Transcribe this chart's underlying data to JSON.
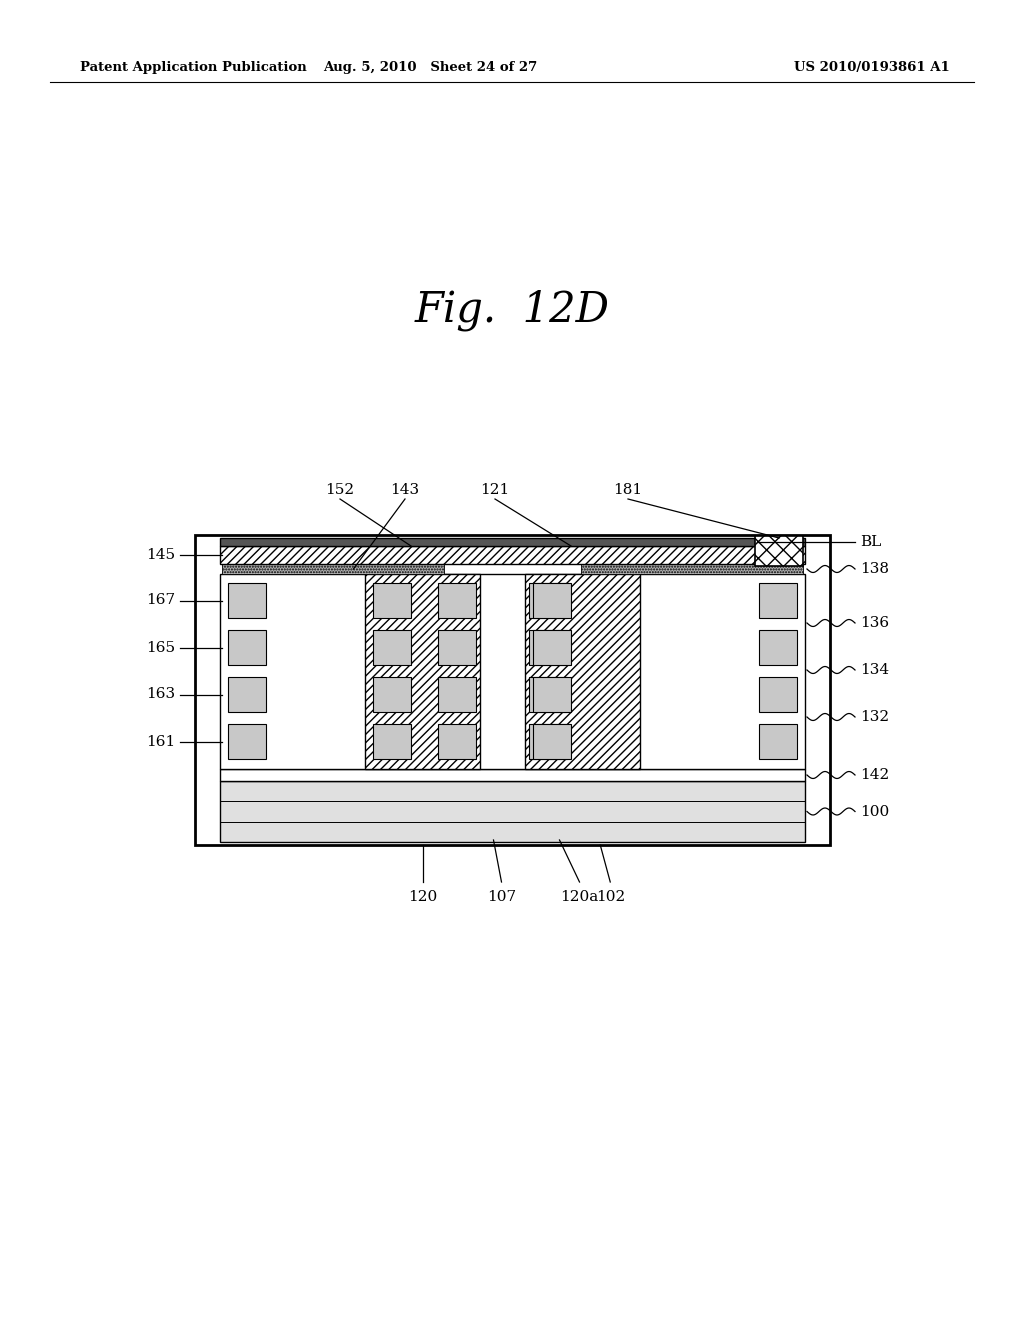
{
  "bg_color": "#ffffff",
  "fig_title": "Fig.  12D",
  "header_left": "Patent Application Publication",
  "header_mid": "Aug. 5, 2010   Sheet 24 of 27",
  "header_right": "US 2010/0193861 A1",
  "label_fontsize": 11,
  "title_fontsize": 30,
  "header_fontsize": 9.5
}
